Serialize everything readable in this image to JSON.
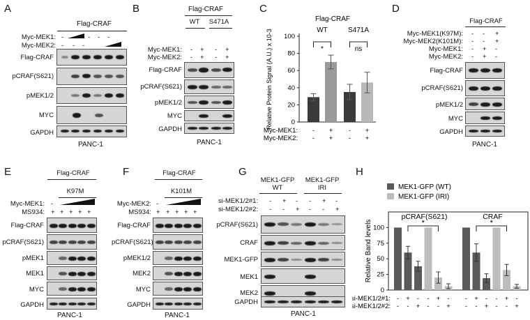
{
  "panels": {
    "A": {
      "letter": "A",
      "header": "Flag-CRAF",
      "conditions": [
        {
          "label": "Myc-MEK1:",
          "marks": [
            "-",
            "",
            "",
            "-",
            "-",
            "-"
          ]
        },
        {
          "label": "Myc-MEK2:",
          "marks": [
            "-",
            "-",
            "-",
            "",
            "",
            ""
          ]
        }
      ],
      "rows": [
        "Flag-CRAF",
        "pCRAF(S621)",
        "pMEK1/2",
        "MYC",
        "GAPDH"
      ],
      "footer": "PANC-1"
    },
    "B": {
      "letter": "B",
      "header": "Flag-CRAF",
      "groups": [
        "WT",
        "S471A"
      ],
      "conditions": [
        {
          "label": "Myc-MEK1:",
          "marks": [
            "-",
            "+",
            "-",
            "+"
          ]
        },
        {
          "label": "Myc-MEK2:",
          "marks": [
            "-",
            "+",
            "-",
            "+"
          ]
        }
      ],
      "rows": [
        "Flag-CRAF",
        "pCRAF(S621)",
        "pMEK1/2",
        "MYC",
        "GAPDH"
      ],
      "footer": "PANC-1"
    },
    "C": {
      "letter": "C"
    },
    "D": {
      "letter": "D",
      "header": "Flag-CRAF",
      "conditions": [
        {
          "label": "Myc-MEK1(K97M):",
          "marks": [
            "-",
            "-",
            "+"
          ]
        },
        {
          "label": "Myc-MEK2(K101M):",
          "marks": [
            "-",
            "-",
            "+"
          ]
        },
        {
          "label": "Myc-MEK1:",
          "marks": [
            "-",
            "+",
            "-"
          ]
        },
        {
          "label": "Myc-MEK2:",
          "marks": [
            "-",
            "+",
            "-"
          ]
        }
      ],
      "rows": [
        "Flag-CRAF",
        "pCRAF(S621)",
        "pMEK1/2",
        "MYC",
        "GAPDH"
      ],
      "footer": "PANC-1"
    },
    "E": {
      "letter": "E",
      "header": "Flag-CRAF",
      "mutant": "K97M",
      "conditions": [
        {
          "label": "Myc-MEK1:",
          "marks": [
            "-",
            "",
            "",
            "",
            ""
          ]
        },
        {
          "label": "MS934:",
          "marks": [
            "+",
            "+",
            "+",
            "+",
            "+"
          ]
        }
      ],
      "rows": [
        "Flag-CRAF",
        "pCRAF(S621)",
        "pMEK1",
        "MEK1",
        "MYC",
        "GAPDH"
      ],
      "footer": "PANC-1"
    },
    "F": {
      "letter": "F",
      "header": "Flag-CRAF",
      "mutant": "K101M",
      "conditions": [
        {
          "label": "Myc-MEK2:",
          "marks": [
            "-",
            "",
            "",
            "",
            ""
          ]
        },
        {
          "label": "MS934:",
          "marks": [
            "+",
            "+",
            "+",
            "+",
            "+"
          ]
        }
      ],
      "rows": [
        "Flag-CRAF",
        "pCRAF(S621)",
        "pMEK1/2",
        "MEK2",
        "MYC",
        "GAPDH"
      ],
      "footer": "PANC-1"
    },
    "G": {
      "letter": "G",
      "groups": [
        {
          "line1": "MEK1-GFP",
          "line2": "WT"
        },
        {
          "line1": "MEK1-GFP",
          "line2": "IRI"
        }
      ],
      "conditions": [
        {
          "label": "si-MEK1/2#1:",
          "marks": [
            "-",
            "+",
            "-",
            "-",
            "+",
            "-"
          ]
        },
        {
          "label": "si-MEK1/2#2:",
          "marks": [
            "-",
            "-",
            "+",
            "-",
            "-",
            "+"
          ]
        }
      ],
      "rows": [
        "pCRAF(S621)",
        "CRAF",
        "MEK1-GFP",
        "MEK1",
        "MEK2",
        "GAPDH"
      ],
      "footer": "PANC-1"
    },
    "H": {
      "letter": "H"
    }
  },
  "chart_data": [
    {
      "type": "bar",
      "panel": "C",
      "title": "Flag-CRAF",
      "ylabel": "Relative Protein Signal (A.U.) x 10-3",
      "ylim": [
        0,
        100
      ],
      "yticks": [
        0,
        20,
        40,
        60,
        80,
        100
      ],
      "groups": [
        "WT",
        "S471A"
      ],
      "conditions": [
        {
          "label": "Myc-MEK1:",
          "marks": [
            "-",
            "+",
            "-",
            "+"
          ]
        },
        {
          "label": "Myc-MEK2:",
          "marks": [
            "-",
            "+",
            "-",
            "+"
          ]
        }
      ],
      "values": [
        29,
        70,
        35,
        46
      ],
      "errors": [
        4,
        8,
        9,
        12
      ],
      "colors": [
        "#3a3a3a",
        "#9a9a9a",
        "#3a3a3a",
        "#b9b9b9"
      ],
      "significance": [
        {
          "label": "*"
        },
        {
          "label": "ns"
        }
      ]
    },
    {
      "type": "bar",
      "panel": "H",
      "ylabel": "Relative Band levels",
      "ylim": [
        0,
        125
      ],
      "yticks": [
        0,
        25,
        50,
        75,
        100
      ],
      "series": [
        {
          "name": "MEK1-GFP (WT)",
          "color": "#5a5a5a"
        },
        {
          "name": "MEK1-GFP (IRI)",
          "color": "#bdbdbd"
        }
      ],
      "groups": [
        {
          "label": "pCRAF(S621)",
          "values": [
            100,
            60,
            38,
            100,
            20,
            6
          ],
          "errors": [
            0,
            10,
            8,
            0,
            9,
            4
          ]
        },
        {
          "label": "CRAF",
          "values": [
            100,
            60,
            19,
            100,
            32,
            6
          ],
          "errors": [
            0,
            14,
            7,
            0,
            9,
            3
          ]
        }
      ],
      "conditions": [
        {
          "label": "si-MEK1/2#1:",
          "marks": [
            "-",
            "+",
            "-",
            "-",
            "+",
            "-"
          ]
        },
        {
          "label": "si-MEK1/2#2:",
          "marks": [
            "-",
            "-",
            "+",
            "-",
            "-",
            "+"
          ]
        }
      ],
      "significance": [
        {
          "label": "*"
        },
        {
          "label": "*"
        }
      ]
    }
  ]
}
